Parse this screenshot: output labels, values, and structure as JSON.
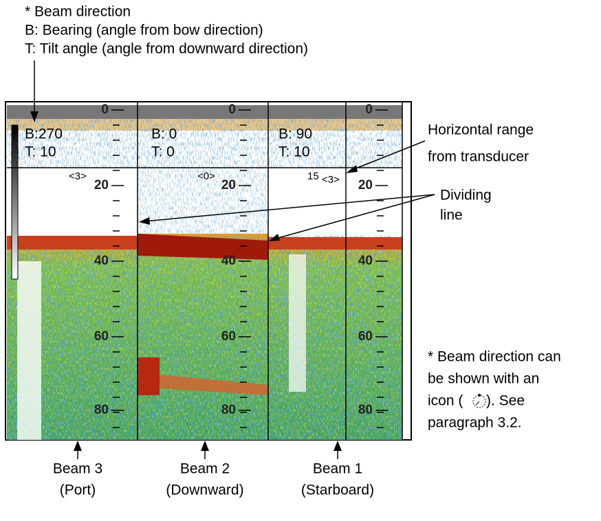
{
  "header_note": [
    "* Beam direction",
    "B: Bearing (angle from bow direction)",
    "T: Tilt angle (angle from downward direction)"
  ],
  "depth_scale": [
    "0",
    "20",
    "40",
    "60",
    "80"
  ],
  "panels": [
    {
      "bearing": "B:270",
      "tilt": "T: 10",
      "range": "<3>",
      "caption": [
        "Beam 3",
        "(Port)"
      ]
    },
    {
      "bearing": "B: 0",
      "tilt": "T: 0",
      "range": "<0>",
      "caption": [
        "Beam 2",
        "(Downward)"
      ]
    },
    {
      "bearing": "B: 90",
      "tilt": "T: 10",
      "range_value": "15",
      "range": "<3>",
      "caption": [
        "Beam 1",
        "(Starboard)"
      ]
    }
  ],
  "callouts": {
    "horizontal_range": [
      "Horizontal range",
      "from transducer"
    ],
    "dividing_line": [
      "Dividing",
      "line"
    ],
    "icon_note": [
      "* Beam direction can",
      "be shown with an",
      "icon (",
      "). See",
      "paragraph 3.2."
    ]
  }
}
